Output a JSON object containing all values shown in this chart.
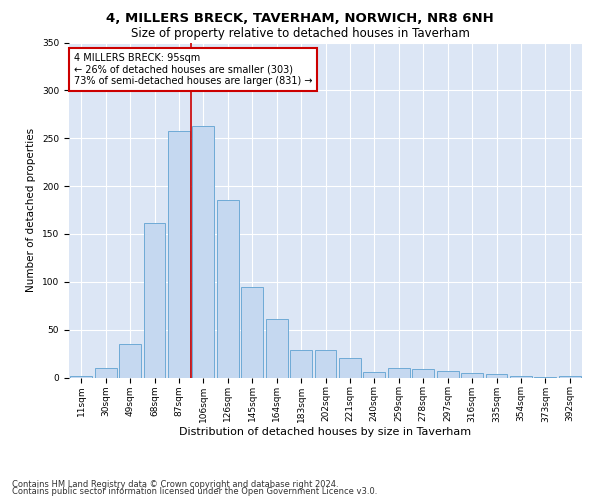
{
  "title": "4, MILLERS BRECK, TAVERHAM, NORWICH, NR8 6NH",
  "subtitle": "Size of property relative to detached houses in Taverham",
  "xlabel": "Distribution of detached houses by size in Taverham",
  "ylabel": "Number of detached properties",
  "categories": [
    "11sqm",
    "30sqm",
    "49sqm",
    "68sqm",
    "87sqm",
    "106sqm",
    "126sqm",
    "145sqm",
    "164sqm",
    "183sqm",
    "202sqm",
    "221sqm",
    "240sqm",
    "259sqm",
    "278sqm",
    "297sqm",
    "316sqm",
    "335sqm",
    "354sqm",
    "373sqm",
    "392sqm"
  ],
  "values": [
    2,
    10,
    35,
    161,
    258,
    263,
    185,
    95,
    61,
    29,
    29,
    20,
    6,
    10,
    9,
    7,
    5,
    4,
    2,
    1,
    2
  ],
  "bar_color": "#c5d8f0",
  "bar_edge_color": "#6eaad6",
  "bar_edge_width": 0.7,
  "vline_x_index": 4,
  "vline_color": "#cc0000",
  "annotation_title": "4 MILLERS BRECK: 95sqm",
  "annotation_line1": "← 26% of detached houses are smaller (303)",
  "annotation_line2": "73% of semi-detached houses are larger (831) →",
  "annotation_box_color": "#ffffff",
  "annotation_box_edgecolor": "#cc0000",
  "ylim": [
    0,
    350
  ],
  "yticks": [
    0,
    50,
    100,
    150,
    200,
    250,
    300,
    350
  ],
  "footer1": "Contains HM Land Registry data © Crown copyright and database right 2024.",
  "footer2": "Contains public sector information licensed under the Open Government Licence v3.0.",
  "plot_bg_color": "#dce6f5",
  "fig_bg_color": "#ffffff",
  "title_fontsize": 9.5,
  "subtitle_fontsize": 8.5,
  "xlabel_fontsize": 8,
  "ylabel_fontsize": 7.5,
  "tick_fontsize": 6.5,
  "annotation_fontsize": 7,
  "footer_fontsize": 6
}
